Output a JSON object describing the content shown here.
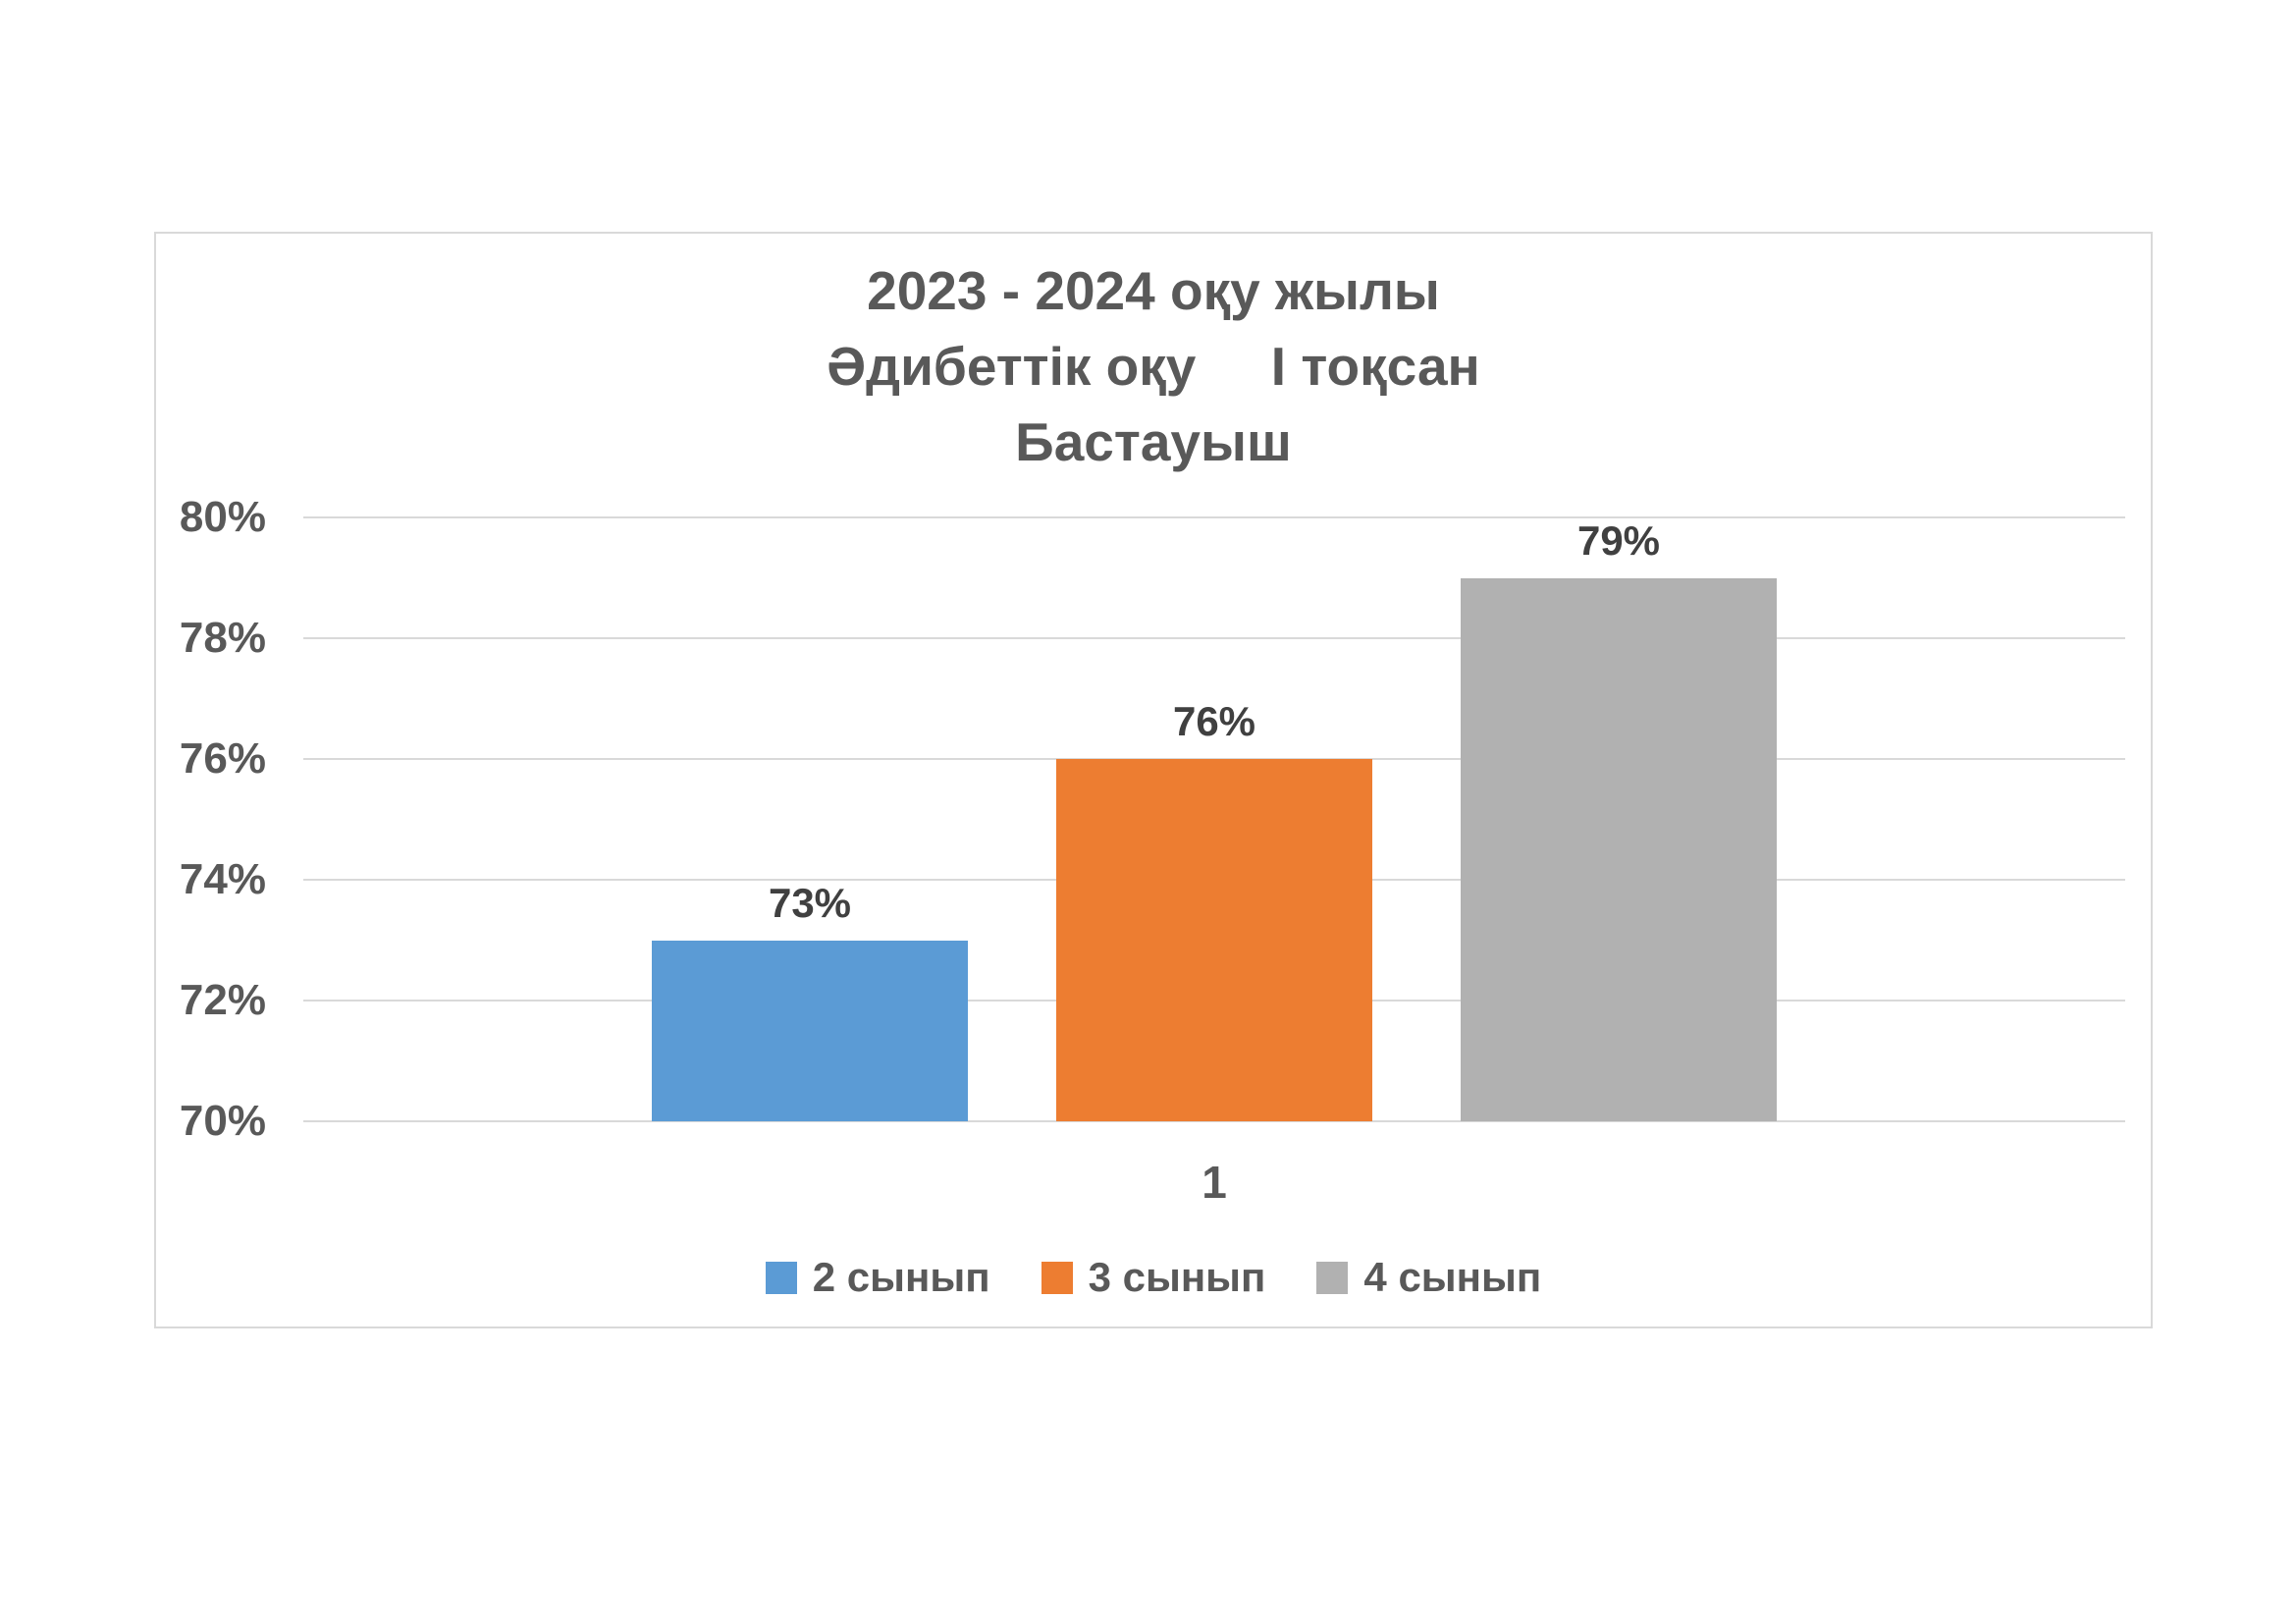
{
  "chart_data": {
    "type": "bar",
    "title_lines": [
      "2023 - 2024 оқу жылы",
      "Әдибеттік оқу     І тоқсан",
      "Бастауыш"
    ],
    "categories": [
      "1"
    ],
    "series": [
      {
        "name": "2 сынып",
        "color": "#5B9BD5",
        "values": [
          73
        ],
        "data_labels": [
          "73%"
        ]
      },
      {
        "name": "3 сынып",
        "color": "#ED7D31",
        "values": [
          76
        ],
        "data_labels": [
          "76%"
        ]
      },
      {
        "name": "4 сынып",
        "color": "#B1B1B1",
        "values": [
          79
        ],
        "data_labels": [
          "79%"
        ]
      }
    ],
    "ylim": [
      70,
      80
    ],
    "yticks": [
      70,
      72,
      74,
      76,
      78,
      80
    ],
    "ytick_labels": [
      "70%",
      "72%",
      "74%",
      "76%",
      "78%",
      "80%"
    ],
    "grid": true,
    "legend_position": "bottom",
    "colors": {
      "axis_text": "#595959",
      "title_text": "#595959",
      "data_label_text": "#404040",
      "gridline": "#D9D9D9",
      "frame_border": "#D9D9D9",
      "background": "#FFFFFF"
    }
  }
}
